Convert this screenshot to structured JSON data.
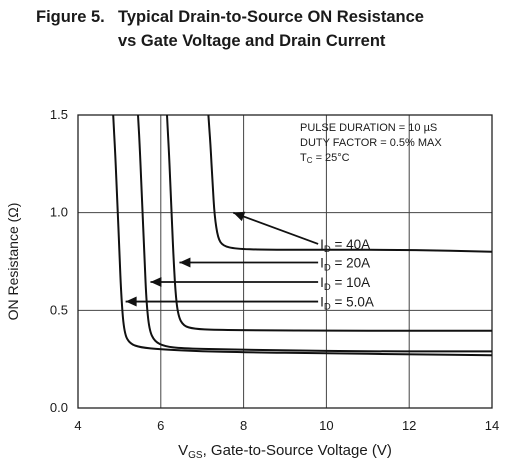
{
  "figure": {
    "label": "Figure 5.",
    "title_line1": "Typical Drain-to-Source ON Resistance",
    "title_line2": "vs Gate Voltage and Drain Current"
  },
  "chart_data": {
    "type": "line",
    "xlabel_main": "V",
    "xlabel_sub": "GS",
    "xlabel_rest": ", Gate-to-Source Voltage (V)",
    "ylabel": "ON Resistance (Ω)",
    "xlim": [
      4,
      14
    ],
    "ylim": [
      0.0,
      1.5
    ],
    "xticks": [
      "4",
      "6",
      "8",
      "10",
      "12",
      "14"
    ],
    "yticks": [
      "0.0",
      "0.5",
      "1.0",
      "1.5"
    ],
    "conditions": [
      "PULSE DURATION = 10 µS",
      "DUTY FACTOR = 0.5% MAX",
      {
        "main": "T",
        "sub": "C",
        "rest": " = 25°C"
      }
    ],
    "series": [
      {
        "name": "I_D = 5.0A",
        "label_main": "I",
        "label_sub": "D",
        "label_rest": " = 5.0A",
        "x": [
          4.85,
          4.9,
          4.95,
          5.0,
          5.05,
          5.12,
          5.25,
          5.5,
          6.0,
          7.0,
          8.0,
          10.0,
          12.0,
          14.0
        ],
        "y": [
          1.5,
          1.3,
          1.05,
          0.8,
          0.55,
          0.38,
          0.33,
          0.31,
          0.3,
          0.29,
          0.285,
          0.28,
          0.275,
          0.27
        ]
      },
      {
        "name": "I_D = 10A",
        "label_main": "I",
        "label_sub": "D",
        "label_rest": " = 10A",
        "x": [
          5.45,
          5.5,
          5.55,
          5.6,
          5.65,
          5.72,
          5.85,
          6.1,
          6.5,
          7.5,
          9.0,
          11.0,
          14.0
        ],
        "y": [
          1.5,
          1.3,
          1.05,
          0.8,
          0.55,
          0.4,
          0.34,
          0.315,
          0.305,
          0.3,
          0.295,
          0.29,
          0.29
        ]
      },
      {
        "name": "I_D = 20A",
        "label_main": "I",
        "label_sub": "D",
        "label_rest": " = 20A",
        "x": [
          6.15,
          6.2,
          6.25,
          6.3,
          6.35,
          6.42,
          6.55,
          6.8,
          7.3,
          8.5,
          10.0,
          12.0,
          14.0
        ],
        "y": [
          1.5,
          1.3,
          1.05,
          0.8,
          0.6,
          0.47,
          0.42,
          0.405,
          0.4,
          0.398,
          0.396,
          0.395,
          0.395
        ]
      },
      {
        "name": "I_D = 40A",
        "label_main": "I",
        "label_sub": "D",
        "label_rest": " = 40A",
        "x": [
          7.15,
          7.2,
          7.25,
          7.3,
          7.38,
          7.5,
          7.8,
          8.5,
          10.0,
          12.0,
          14.0
        ],
        "y": [
          1.5,
          1.35,
          1.15,
          0.98,
          0.87,
          0.83,
          0.815,
          0.81,
          0.81,
          0.81,
          0.8
        ]
      }
    ],
    "arrows": [
      {
        "from": [
          9.8,
          0.84
        ],
        "to": [
          7.75,
          1.0
        ]
      },
      {
        "from": [
          9.8,
          0.745
        ],
        "to": [
          6.45,
          0.745
        ]
      },
      {
        "from": [
          9.8,
          0.645
        ],
        "to": [
          5.75,
          0.645
        ]
      },
      {
        "from": [
          9.8,
          0.545
        ],
        "to": [
          5.15,
          0.545
        ]
      }
    ],
    "grid": true,
    "legend": "none"
  }
}
